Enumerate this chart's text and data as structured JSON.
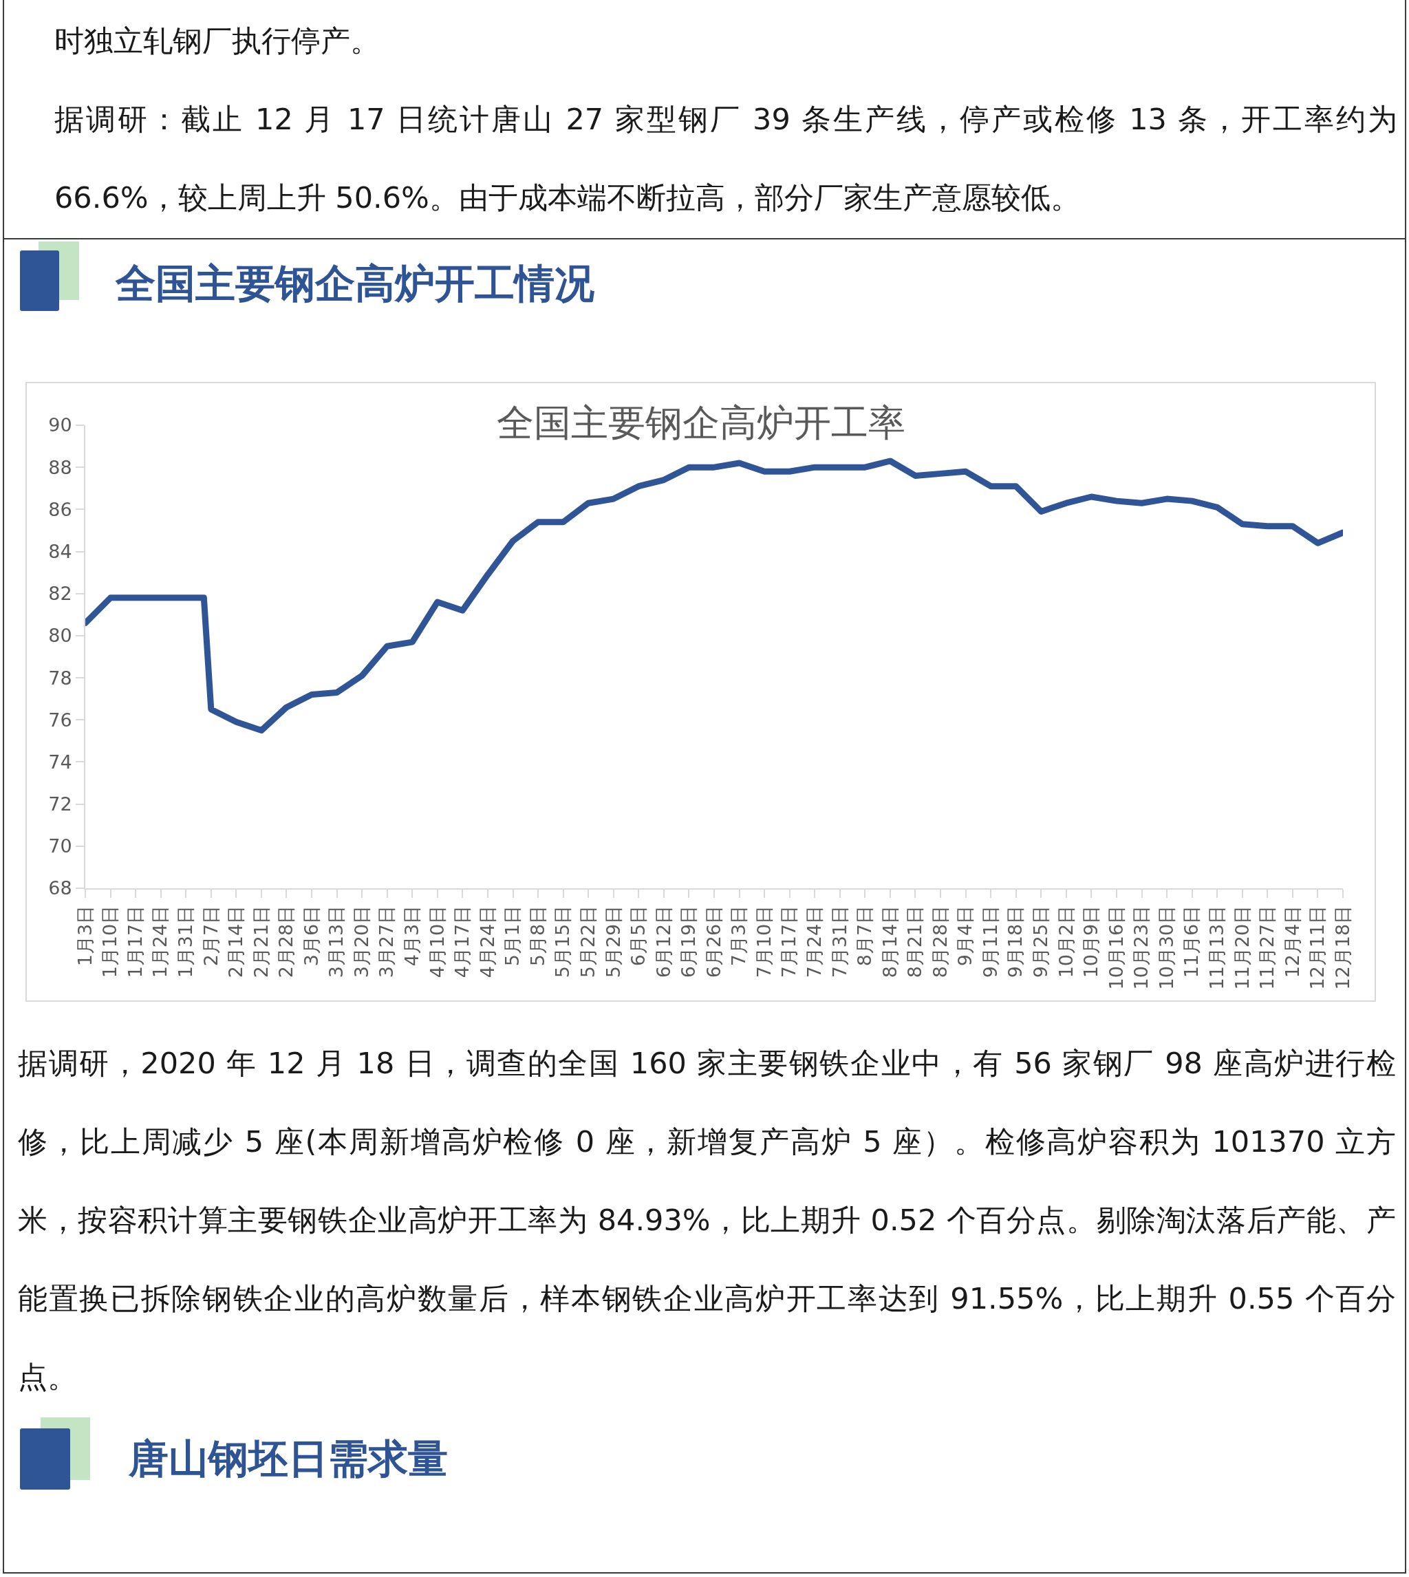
{
  "chart_data": {
    "type": "line",
    "title": "全国主要钢企高炉开工率",
    "annotations": [
      "时独立轧钢厂执行停产。",
      "据调研：截止 12 月 17 日统计唐山 27 家型钢厂 39 条生产线，停产或检修 13 条，开工率约为 66.6%，较上周上升 50.6%。由于成本端不断拉高，部分厂家生产意愿较低。",
      "全国主要钢企高炉开工情况",
      "据调研，2020 年 12 月 18 日，调查的全国 160 家主要钢铁企业中，有 56 家钢厂 98 座高炉进行检修，比上周减少 5 座(本周新增高炉检修 0 座，新增复产高炉 5 座）。检修高炉容积为 101370 立方米，按容积计算主要钢铁企业高炉开工率为 84.93%，比上期升 0.52 个百分点。剔除淘汰落后产能、产能置换已拆除钢铁企业的高炉数量后，样本钢铁企业高炉开工率达到 91.55%，比上期升 0.55 个百分点。",
      "唐山钢坯日需求量"
    ],
    "x": [
      "2020-01-03",
      "2020-01-10",
      "2020-01-17",
      "2020-01-24",
      "2020-01-31",
      "2020-02-05",
      "2020-02-07",
      "2020-02-14",
      "2020-02-21",
      "2020-02-28",
      "2020-03-06",
      "2020-03-13",
      "2020-03-20",
      "2020-03-27",
      "2020-04-03",
      "2020-04-10",
      "2020-04-17",
      "2020-04-24",
      "2020-05-01",
      "2020-05-08",
      "2020-05-15",
      "2020-05-22",
      "2020-05-29",
      "2020-06-05",
      "2020-06-12",
      "2020-06-19",
      "2020-06-26",
      "2020-07-03",
      "2020-07-10",
      "2020-07-17",
      "2020-07-24",
      "2020-07-31",
      "2020-08-07",
      "2020-08-14",
      "2020-08-21",
      "2020-08-28",
      "2020-09-04",
      "2020-09-11",
      "2020-09-18",
      "2020-09-25",
      "2020-10-02",
      "2020-10-09",
      "2020-10-16",
      "2020-10-23",
      "2020-10-30",
      "2020-11-06",
      "2020-11-13",
      "2020-11-20",
      "2020-11-27",
      "2020-12-04",
      "2020-12-11",
      "2020-12-18"
    ],
    "values": [
      80.6,
      81.8,
      81.8,
      81.8,
      81.8,
      81.8,
      76.5,
      75.9,
      75.5,
      76.6,
      77.2,
      77.3,
      78.1,
      79.5,
      79.7,
      81.6,
      81.2,
      82.9,
      84.5,
      85.4,
      85.4,
      86.3,
      86.5,
      87.1,
      87.4,
      88.0,
      88.0,
      88.2,
      87.8,
      87.8,
      88.0,
      88.0,
      88.0,
      88.3,
      87.6,
      87.7,
      87.8,
      87.1,
      87.1,
      85.9,
      86.3,
      86.6,
      86.4,
      86.3,
      86.5,
      86.4,
      86.1,
      85.3,
      85.2,
      85.2,
      84.4,
      84.9
    ],
    "color": "#2f5597",
    "xlim": [
      "2020-01-03",
      "2020-12-18"
    ],
    "xticks": [
      {
        "value": "2020-01-03",
        "label": "1月3日"
      },
      {
        "value": "2020-01-10",
        "label": "1月10日"
      },
      {
        "value": "2020-01-17",
        "label": "1月17日"
      },
      {
        "value": "2020-01-24",
        "label": "1月24日"
      },
      {
        "value": "2020-01-31",
        "label": "1月31日"
      },
      {
        "value": "2020-02-07",
        "label": "2月7日"
      },
      {
        "value": "2020-02-14",
        "label": "2月14日"
      },
      {
        "value": "2020-02-21",
        "label": "2月21日"
      },
      {
        "value": "2020-02-28",
        "label": "2月28日"
      },
      {
        "value": "2020-03-06",
        "label": "3月6日"
      },
      {
        "value": "2020-03-13",
        "label": "3月13日"
      },
      {
        "value": "2020-03-20",
        "label": "3月20日"
      },
      {
        "value": "2020-03-27",
        "label": "3月27日"
      },
      {
        "value": "2020-04-03",
        "label": "4月3日"
      },
      {
        "value": "2020-04-10",
        "label": "4月10日"
      },
      {
        "value": "2020-04-17",
        "label": "4月17日"
      },
      {
        "value": "2020-04-24",
        "label": "4月24日"
      },
      {
        "value": "2020-05-01",
        "label": "5月1日"
      },
      {
        "value": "2020-05-08",
        "label": "5月8日"
      },
      {
        "value": "2020-05-15",
        "label": "5月15日"
      },
      {
        "value": "2020-05-22",
        "label": "5月22日"
      },
      {
        "value": "2020-05-29",
        "label": "5月29日"
      },
      {
        "value": "2020-06-05",
        "label": "6月5日"
      },
      {
        "value": "2020-06-12",
        "label": "6月12日"
      },
      {
        "value": "2020-06-19",
        "label": "6月19日"
      },
      {
        "value": "2020-06-26",
        "label": "6月26日"
      },
      {
        "value": "2020-07-03",
        "label": "7月3日"
      },
      {
        "value": "2020-07-10",
        "label": "7月10日"
      },
      {
        "value": "2020-07-17",
        "label": "7月17日"
      },
      {
        "value": "2020-07-24",
        "label": "7月24日"
      },
      {
        "value": "2020-07-31",
        "label": "7月31日"
      },
      {
        "value": "2020-08-07",
        "label": "8月7日"
      },
      {
        "value": "2020-08-14",
        "label": "8月14日"
      },
      {
        "value": "2020-08-21",
        "label": "8月21日"
      },
      {
        "value": "2020-08-28",
        "label": "8月28日"
      },
      {
        "value": "2020-09-04",
        "label": "9月4日"
      },
      {
        "value": "2020-09-11",
        "label": "9月11日"
      },
      {
        "value": "2020-09-18",
        "label": "9月18日"
      },
      {
        "value": "2020-09-25",
        "label": "9月25日"
      },
      {
        "value": "2020-10-02",
        "label": "10月2日"
      },
      {
        "value": "2020-10-09",
        "label": "10月9日"
      },
      {
        "value": "2020-10-16",
        "label": "10月16日"
      },
      {
        "value": "2020-10-23",
        "label": "10月23日"
      },
      {
        "value": "2020-10-30",
        "label": "10月30日"
      },
      {
        "value": "2020-11-06",
        "label": "11月6日"
      },
      {
        "value": "2020-11-13",
        "label": "11月13日"
      },
      {
        "value": "2020-11-20",
        "label": "11月20日"
      },
      {
        "value": "2020-11-27",
        "label": "11月27日"
      },
      {
        "value": "2020-12-04",
        "label": "12月4日"
      },
      {
        "value": "2020-12-11",
        "label": "12月11日"
      },
      {
        "value": "2020-12-18",
        "label": "12月18日"
      }
    ],
    "ylim": [
      68,
      90
    ],
    "yticks": [
      68,
      70,
      72,
      74,
      76,
      78,
      80,
      82,
      84,
      86,
      88,
      90
    ]
  }
}
